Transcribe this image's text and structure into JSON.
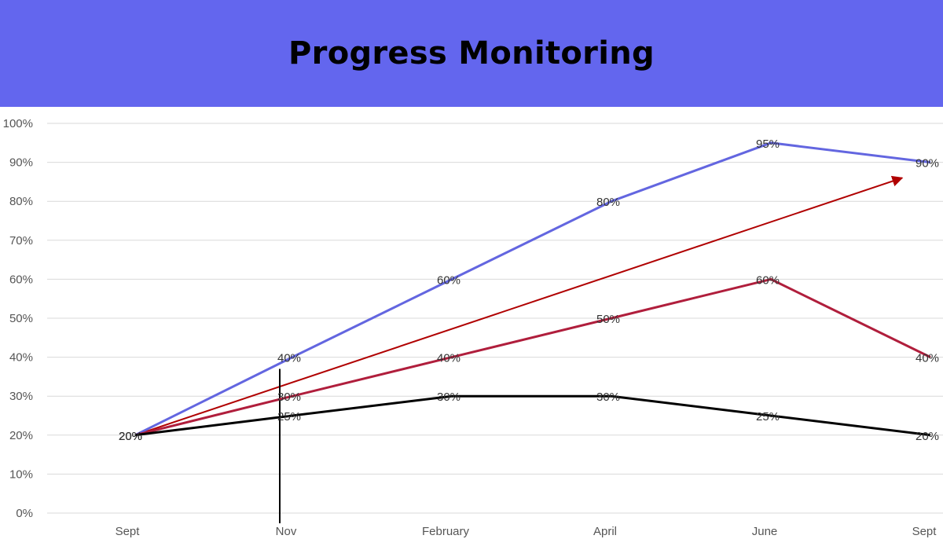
{
  "header": {
    "title": "Progress Monitoring"
  },
  "colors": {
    "banner": "#6366ee",
    "grid": "#d9d9d9"
  },
  "chart_data": {
    "type": "line",
    "title": "Progress Monitoring",
    "xlabel": "",
    "ylabel": "",
    "categories": [
      "Sept",
      "Nov",
      "February",
      "April",
      "June",
      "Sept"
    ],
    "ylim": [
      0,
      100
    ],
    "yticks": [
      "0%",
      "10%",
      "20%",
      "30%",
      "40%",
      "50%",
      "60%",
      "70%",
      "80%",
      "90%",
      "100%"
    ],
    "grid": true,
    "legend": "none",
    "series": [
      {
        "color": "#6366e0",
        "values": [
          20,
          40,
          60,
          80,
          95,
          90
        ],
        "labels": [
          "20%",
          "40%",
          "60%",
          "80%",
          "95%",
          "90%"
        ]
      },
      {
        "color": "#b01e3c",
        "values": [
          20,
          30,
          40,
          50,
          60,
          40
        ],
        "labels": [
          "20%",
          "30%",
          "40%",
          "50%",
          "60%",
          "40%"
        ]
      },
      {
        "color": "#000000",
        "values": [
          20,
          25,
          30,
          30,
          25,
          20
        ],
        "labels": [
          "20%",
          "25%",
          "30%",
          "30%",
          "25%",
          "20%"
        ]
      }
    ],
    "annotations": [
      {
        "type": "goal-arrow",
        "color": "#b00000",
        "from": {
          "x": "Sept",
          "y": 20
        },
        "to": {
          "x": "Sept",
          "y": 86
        }
      },
      {
        "type": "vertical-line",
        "color": "#000000",
        "x": "Nov",
        "y_top": 37
      }
    ]
  }
}
